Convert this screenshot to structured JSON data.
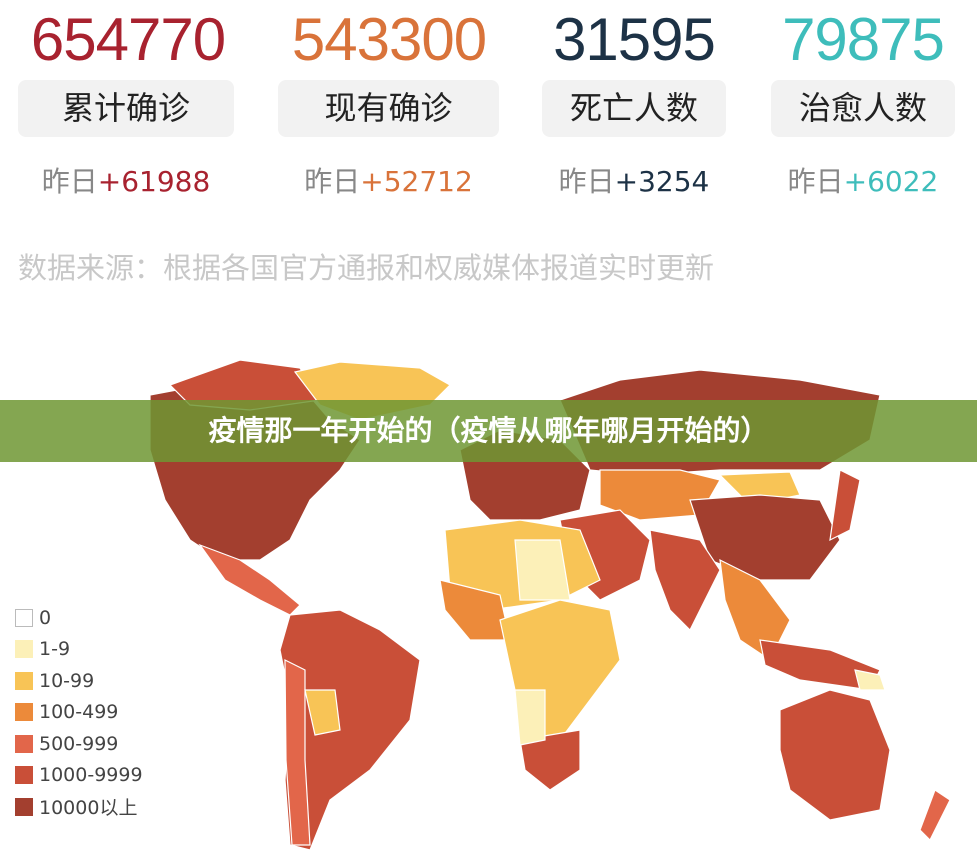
{
  "stats": [
    {
      "value": "654770",
      "label": "累计确诊",
      "delta_prefix": "昨日",
      "delta": "+61988",
      "color": "#a8222f"
    },
    {
      "value": "543300",
      "label": "现有确诊",
      "delta_prefix": "昨日",
      "delta": "+52712",
      "color": "#d9733a"
    },
    {
      "value": "31595",
      "label": "死亡人数",
      "delta_prefix": "昨日",
      "delta": "+3254",
      "color": "#1d3246"
    },
    {
      "value": "79875",
      "label": "治愈人数",
      "delta_prefix": "昨日",
      "delta": "+6022",
      "color": "#3ebdbb"
    }
  ],
  "source": "数据来源：根据各国官方通报和权威媒体报道实时更新",
  "banner": "疫情那一年开始的（疫情从哪年哪月开始的）",
  "legend": [
    {
      "label": "0",
      "color": "#ffffff"
    },
    {
      "label": "1-9",
      "color": "#fcf0b8"
    },
    {
      "label": "10-99",
      "color": "#f8c456"
    },
    {
      "label": "100-499",
      "color": "#ec8a3a"
    },
    {
      "label": "500-999",
      "color": "#e2664a"
    },
    {
      "label": "1000-9999",
      "color": "#c94f38"
    },
    {
      "label": "10000以上",
      "color": "#a33f2f"
    }
  ]
}
